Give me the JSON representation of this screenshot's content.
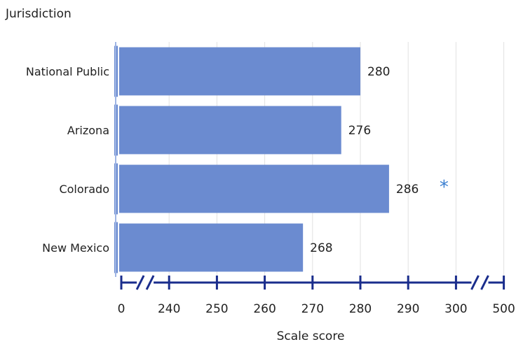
{
  "chart_data": {
    "type": "bar",
    "orientation": "horizontal",
    "title": "Jurisdiction",
    "xlabel": "Scale score",
    "ylabel": "",
    "categories": [
      "National Public",
      "Arizona",
      "Colorado",
      "New Mexico"
    ],
    "values": [
      280,
      276,
      286,
      268
    ],
    "value_labels": [
      "280",
      "276",
      "286",
      "268"
    ],
    "significance": [
      false,
      false,
      true,
      false
    ],
    "significance_marker": "*",
    "xlim": [
      230,
      310
    ],
    "x_ticks": [
      0,
      240,
      250,
      260,
      270,
      280,
      290,
      300,
      500
    ],
    "x_tick_labels": [
      "0",
      "240",
      "250",
      "260",
      "270",
      "280",
      "290",
      "300",
      "500"
    ],
    "axis_breaks": [
      "0-240",
      "300-500"
    ],
    "grid": true,
    "legend": "none",
    "colors": {
      "bar": "#6b8bd0",
      "axis": "#1a2d8c",
      "grid": "#e2e2e2",
      "sig_marker": "#3b7fd0"
    }
  }
}
